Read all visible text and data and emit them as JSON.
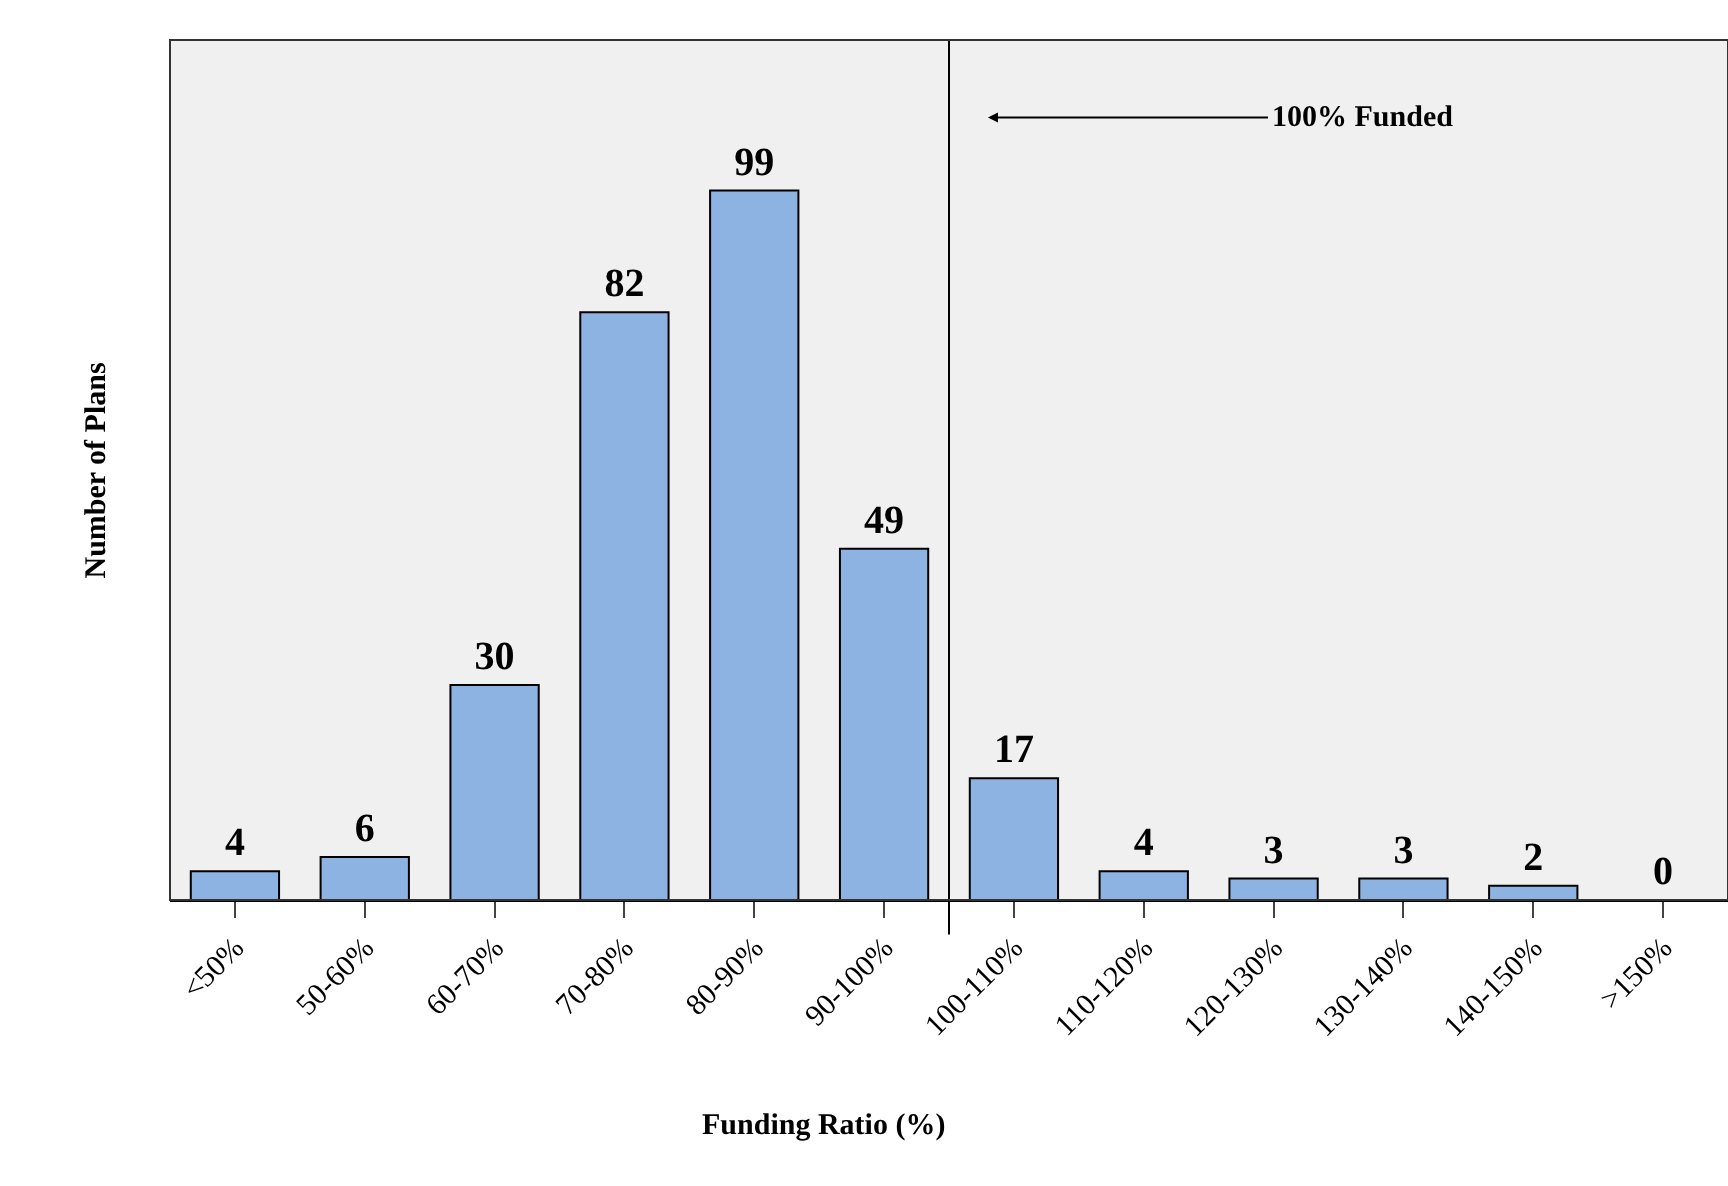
{
  "chart_data": {
    "type": "bar",
    "xlabel": "Funding Ratio (%)",
    "ylabel": "Number of Plans",
    "categories": [
      "<50%",
      "50-60%",
      "60-70%",
      "70-80%",
      "80-90%",
      "90-100%",
      "100-110%",
      "110-120%",
      "120-130%",
      "130-140%",
      "140-150%",
      ">150%"
    ],
    "values": [
      4,
      6,
      30,
      82,
      99,
      49,
      17,
      4,
      3,
      3,
      2,
      0
    ],
    "color": "#8db3e2",
    "ylim": [
      0,
      120
    ],
    "data_labels": true,
    "grid": false,
    "annotations": [
      "100% Funded"
    ]
  }
}
